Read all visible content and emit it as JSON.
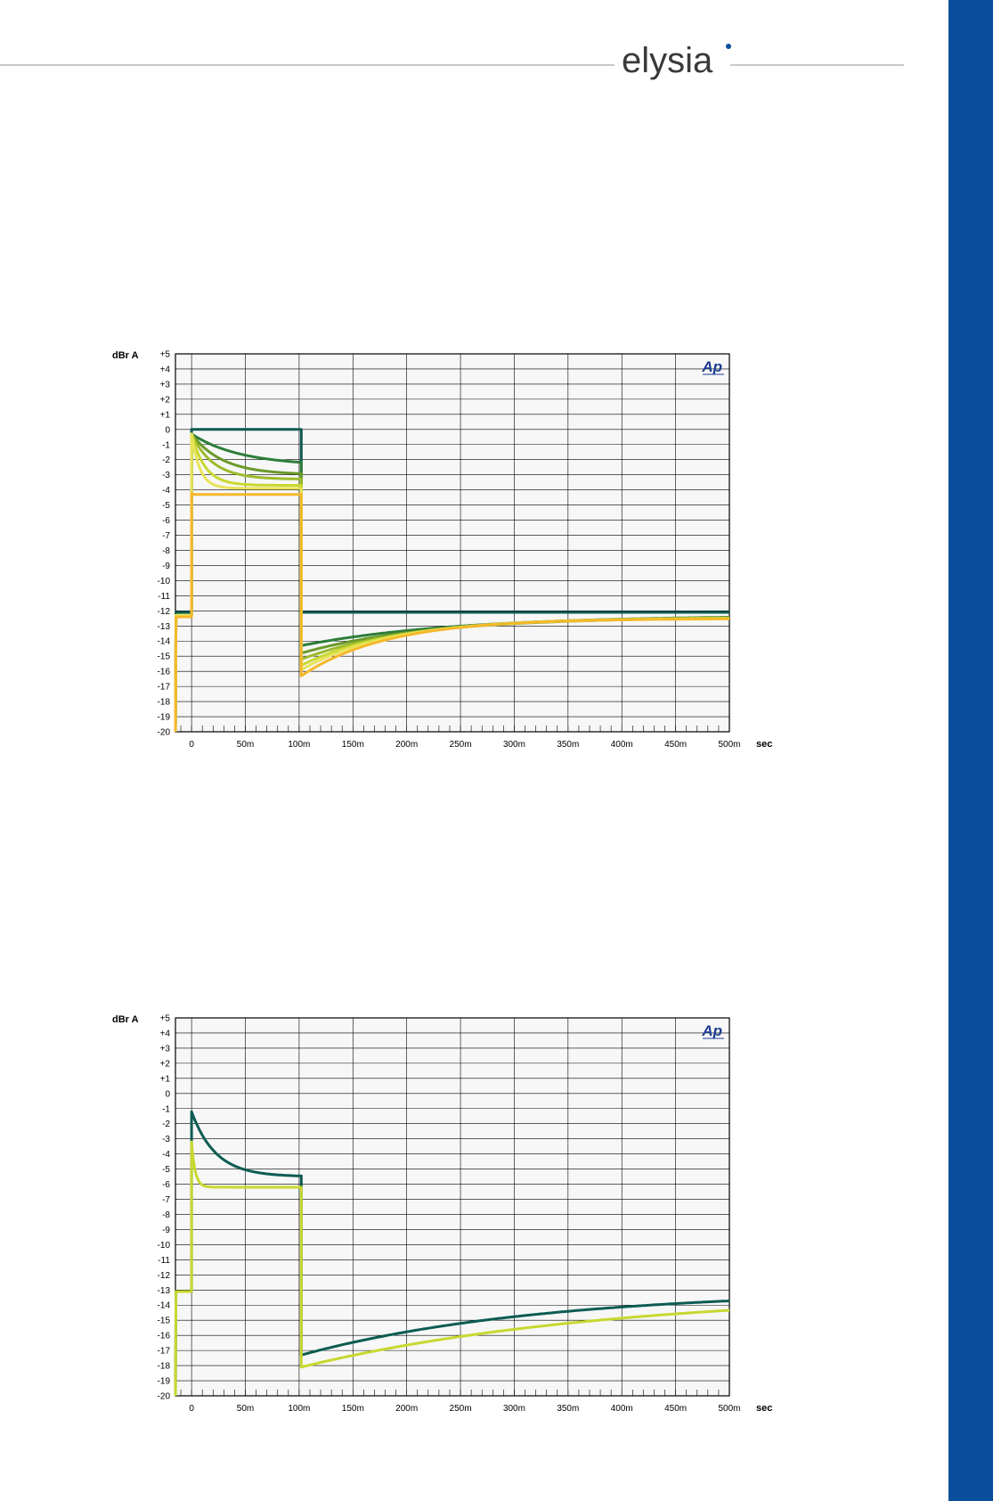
{
  "brand": {
    "name": "elysia",
    "accent": "#0a4f9e",
    "line": "#c8c8c8"
  },
  "charts": [
    {
      "type": "line",
      "ylabel": "dBr A",
      "xunit": "sec",
      "badge": "Ap",
      "ylim": [
        -20,
        5
      ],
      "xlim": [
        -15,
        500
      ],
      "xticks": [
        "0",
        "50m",
        "100m",
        "150m",
        "200m",
        "250m",
        "300m",
        "350m",
        "400m",
        "450m",
        "500m"
      ],
      "yticks": [
        "+5",
        "+4",
        "+3",
        "+2",
        "+1",
        "0",
        "-1",
        "-2",
        "-3",
        "-4",
        "-5",
        "-6",
        "-7",
        "-8",
        "-9",
        "-10",
        "-11",
        "-12",
        "-13",
        "-14",
        "-15",
        "-16",
        "-17",
        "-18",
        "-19",
        "-20"
      ],
      "grid": true,
      "series": [
        {
          "color": "#0d5c52",
          "kind": "step",
          "pre": -12.1,
          "gate": 0,
          "post": -12.1
        },
        {
          "color": "#2e7d3a",
          "kind": "decay",
          "pre": -12.3,
          "start": -0.3,
          "end": -2.4,
          "k": 0.022,
          "release_start": -14.3,
          "release_end": -12.3,
          "rt": 0.007
        },
        {
          "color": "#6a9a2a",
          "kind": "decay",
          "pre": -12.3,
          "start": -0.3,
          "end": -3.0,
          "k": 0.035,
          "release_start": -14.8,
          "release_end": -12.4,
          "rt": 0.0085
        },
        {
          "color": "#9dbb2c",
          "kind": "decay",
          "pre": -12.3,
          "start": -0.3,
          "end": -3.3,
          "k": 0.05,
          "release_start": -15.2,
          "release_end": -12.4,
          "rt": 0.0095
        },
        {
          "color": "#c8d830",
          "kind": "decay",
          "pre": -12.3,
          "start": -0.3,
          "end": -3.7,
          "k": 0.08,
          "release_start": -15.6,
          "release_end": -12.45,
          "rt": 0.011
        },
        {
          "color": "#e8e45a",
          "kind": "decay",
          "pre": -12.3,
          "start": -0.3,
          "end": -3.9,
          "k": 0.13,
          "release_start": -15.9,
          "release_end": -12.5,
          "rt": 0.012
        },
        {
          "color": "#f5b82a",
          "kind": "decay",
          "pre": -12.4,
          "start": -4.2,
          "end": -4.3,
          "k": 1.0,
          "release_start": -16.3,
          "release_end": -12.5,
          "rt": 0.0125
        }
      ]
    },
    {
      "type": "line",
      "ylabel": "dBr A",
      "xunit": "sec",
      "badge": "Ap",
      "ylim": [
        -20,
        5
      ],
      "xlim": [
        -15,
        500
      ],
      "xticks": [
        "0",
        "50m",
        "100m",
        "150m",
        "200m",
        "250m",
        "300m",
        "350m",
        "400m",
        "450m",
        "500m"
      ],
      "yticks": [
        "+5",
        "+4",
        "+3",
        "+2",
        "+1",
        "0",
        "-1",
        "-2",
        "-3",
        "-4",
        "-5",
        "-6",
        "-7",
        "-8",
        "-9",
        "-10",
        "-11",
        "-12",
        "-13",
        "-14",
        "-15",
        "-16",
        "-17",
        "-18",
        "-19",
        "-20"
      ],
      "grid": true,
      "series": [
        {
          "color": "#0d5c52",
          "kind": "decay",
          "pre": -13.1,
          "start": -1.2,
          "end": -5.5,
          "k": 0.045,
          "release_start": -17.3,
          "release_end": -13.0,
          "rt": 0.0045
        },
        {
          "color": "#c8d830",
          "kind": "decay",
          "pre": -13.1,
          "start": -3.2,
          "end": -6.2,
          "k": 0.3,
          "release_start": -18.1,
          "release_end": -13.1,
          "rt": 0.0035
        }
      ]
    }
  ]
}
